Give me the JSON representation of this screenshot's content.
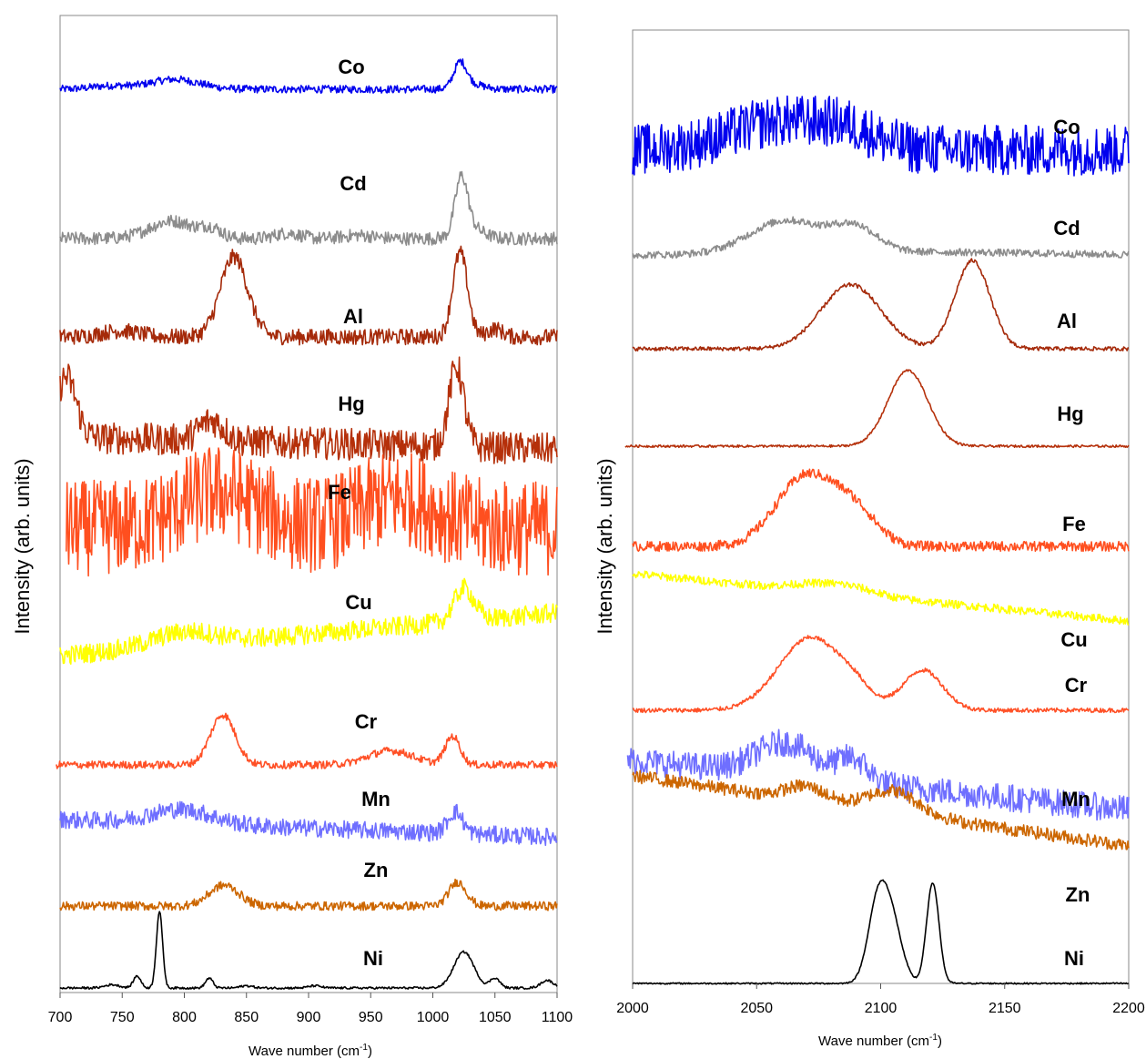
{
  "chart_data": [
    {
      "type": "line",
      "panel": "left",
      "ylabel": "Intensity (arb. units)",
      "xlabel_main": "Wave number (cm",
      "xlabel_sup": "-1",
      "xlabel_close": ")",
      "xlim": [
        700,
        1100
      ],
      "xticks": [
        "700",
        "750",
        "800",
        "850",
        "900",
        "950",
        "1000",
        "1050",
        "1100"
      ],
      "tick_values": [
        700,
        750,
        800,
        850,
        900,
        950,
        1000,
        1050,
        1100
      ],
      "series": [
        {
          "name": "Co",
          "color": "#0000ee",
          "noise": 0.35,
          "peaks": [
            [
              740,
              15,
              0.3
            ],
            [
              792,
              20,
              0.9
            ],
            [
              1022,
              5,
              2.2
            ],
            [
              1030,
              10,
              0.5
            ]
          ],
          "slope": 0,
          "start": 700
        },
        {
          "name": "Cd",
          "color": "#8c8c8c",
          "noise": 0.6,
          "peaks": [
            [
              790,
              18,
              1.6
            ],
            [
              822,
              8,
              0.8
            ],
            [
              883,
              10,
              0.5
            ],
            [
              940,
              12,
              0.3
            ],
            [
              1023,
              5,
              5.0
            ],
            [
              1030,
              10,
              1.0
            ]
          ],
          "slope": 0,
          "start": 700
        },
        {
          "name": "Al",
          "color": "#a52a0a",
          "noise": 0.4,
          "peaks": [
            [
              748,
              15,
              0.3
            ],
            [
              840,
              11,
              4.0
            ],
            [
              1022,
              6,
              4.2
            ],
            [
              1050,
              6,
              0.4
            ]
          ],
          "slope": 0,
          "start": 700
        },
        {
          "name": "Hg",
          "color": "#b5300a",
          "noise": 0.8,
          "peaks": [
            [
              705,
              8,
              3.0
            ],
            [
              822,
              10,
              1.0
            ],
            [
              1019,
              6,
              4.0
            ]
          ],
          "slope": -0.003,
          "start": 700
        },
        {
          "name": "Fe",
          "color": "#ff4f1f",
          "noise": 2.4,
          "peaks": [
            [
              828,
              30,
              1.8
            ],
            [
              972,
              30,
              1.5
            ]
          ],
          "slope": 0,
          "start": 705
        },
        {
          "name": "Cu",
          "color": "#ffff00",
          "noise": 0.6,
          "peaks": [
            [
              800,
              25,
              0.8
            ],
            [
              1025,
              8,
              2.0
            ]
          ],
          "slope": 0.013,
          "start": 700
        },
        {
          "name": "Cr",
          "color": "#ff5026",
          "noise": 0.35,
          "peaks": [
            [
              831,
              10,
              4.6
            ],
            [
              966,
              18,
              1.3
            ],
            [
              1016,
              6,
              2.6
            ]
          ],
          "slope": 0,
          "start": 697
        },
        {
          "name": "Mn",
          "color": "#6f6fff",
          "noise": 0.8,
          "peaks": [
            [
              798,
              25,
              1.3
            ],
            [
              1018,
              6,
              2.0
            ]
          ],
          "slope": -0.008,
          "start": 700
        },
        {
          "name": "Zn",
          "color": "#cc6600",
          "noise": 0.4,
          "peaks": [
            [
              832,
              12,
              1.9
            ],
            [
              1020,
              7,
              2.2
            ]
          ],
          "slope": 0,
          "start": 700
        },
        {
          "name": "Ni",
          "color": "#000000",
          "noise": 0.1,
          "peaks": [
            [
              742,
              6,
              0.3
            ],
            [
              762,
              3,
              1.1
            ],
            [
              780,
              2.5,
              7.0
            ],
            [
              820,
              3,
              0.9
            ],
            [
              850,
              5,
              0.2
            ],
            [
              905,
              5,
              0.2
            ],
            [
              1025,
              8,
              3.3
            ],
            [
              1050,
              4,
              0.9
            ],
            [
              1092,
              5,
              0.7
            ]
          ],
          "slope": 0,
          "start": 700
        }
      ]
    },
    {
      "type": "line",
      "panel": "right",
      "ylabel": "Intensity (arb. units)",
      "xlabel_main": "Wave number (cm",
      "xlabel_sup": "-1",
      "xlabel_close": ")",
      "xlim": [
        2000,
        2200
      ],
      "xticks": [
        "2000",
        "2050",
        "2100",
        "2150",
        "2200"
      ],
      "tick_values": [
        2000,
        2050,
        2100,
        2150,
        2200
      ],
      "series": [
        {
          "name": "Co",
          "color": "#0000ee",
          "noise": 1.4,
          "peaks": [
            [
              2062,
              22,
              1.6
            ],
            [
              2088,
              10,
              0.6
            ]
          ],
          "slope": 0,
          "start": 2000
        },
        {
          "name": "Cd",
          "color": "#8c8c8c",
          "noise": 0.25,
          "peaks": [
            [
              2062,
              15,
              2.3
            ],
            [
              2090,
              9,
              1.6
            ],
            [
              2120,
              40,
              0.2
            ]
          ],
          "slope": 0,
          "start": 2000
        },
        {
          "name": "Al",
          "color": "#a52a0a",
          "noise": 0.1,
          "peaks": [
            [
              2088,
              12,
              3.2
            ],
            [
              2137,
              7,
              4.4
            ]
          ],
          "slope": 0,
          "start": 2000
        },
        {
          "name": "Hg",
          "color": "#b5300a",
          "noise": 0.08,
          "peaks": [
            [
              2111,
              8,
              5.2
            ]
          ],
          "slope": 0,
          "start": 1997
        },
        {
          "name": "Fe",
          "color": "#ff4f1f",
          "noise": 0.25,
          "peaks": [
            [
              2070,
              12,
              3.5
            ],
            [
              2090,
              9,
              1.5
            ]
          ],
          "slope": 0,
          "start": 2000
        },
        {
          "name": "Cu",
          "color": "#ffff00",
          "noise": 0.45,
          "peaks": [
            [
              2072,
              10,
              0.6
            ],
            [
              2088,
              10,
              0.8
            ]
          ],
          "slope": -0.026,
          "start": 2000
        },
        {
          "name": "Cr",
          "color": "#ff5026",
          "noise": 0.12,
          "peaks": [
            [
              2072,
              13,
              4.0
            ],
            [
              2090,
              6,
              0.6
            ],
            [
              2117,
              8,
              2.2
            ]
          ],
          "slope": 0,
          "start": 2000
        },
        {
          "name": "Mn",
          "color": "#6f6fff",
          "noise": 1.0,
          "peaks": [
            [
              2062,
              12,
              2.4
            ],
            [
              2089,
              6,
              1.6
            ]
          ],
          "slope": -0.018,
          "start": 1998
        },
        {
          "name": "Zn",
          "color": "#cc6600",
          "noise": 0.6,
          "peaks": [
            [
              2070,
              8,
              1.3
            ],
            [
              2105,
              10,
              2.0
            ]
          ],
          "slope": -0.032,
          "start": 2000
        },
        {
          "name": "Ni",
          "color": "#000000",
          "noise": 0.05,
          "peaks": [
            [
              2099,
              4,
              5.6
            ],
            [
              2105,
              4,
              3.5
            ],
            [
              2121,
              2.5,
              6.9
            ]
          ],
          "slope": 0,
          "start": 2000
        }
      ]
    }
  ]
}
